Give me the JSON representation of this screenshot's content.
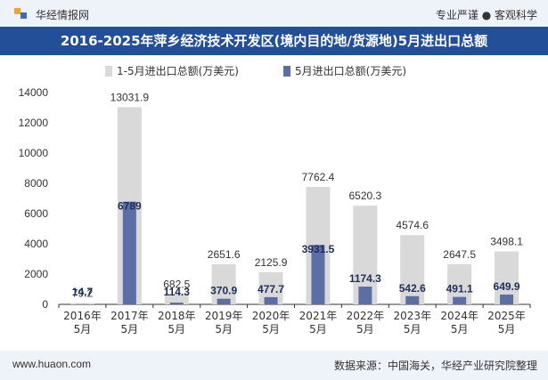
{
  "header": {
    "brand": "华经情报网",
    "tagline": "专业严谨 ● 客观科学"
  },
  "title": "2016-2025年萍乡经济技术开发区(境内目的地/货源地)5月进出口总额",
  "footer": {
    "website": "www.huaon.com",
    "source": "数据来源：中国海关，华经产业研究院整理"
  },
  "colors": {
    "accent": "#234f98",
    "series_cumulative": "#d9d9d9",
    "series_may": "#5b6ea5"
  },
  "chart_data": {
    "type": "bar",
    "categories": [
      "2016年\n5月",
      "2017年\n5月",
      "2018年\n5月",
      "2019年\n5月",
      "2020年\n5月",
      "2021年\n5月",
      "2022年\n5月",
      "2023年\n5月",
      "2024年\n5月",
      "2025年\n5月"
    ],
    "series": [
      {
        "name": "1-5月进出口总额(万美元)",
        "values": [
          79.2,
          13031.9,
          682.5,
          2651.6,
          2125.9,
          7762.4,
          6520.3,
          4574.6,
          2647.5,
          3498.1
        ]
      },
      {
        "name": "5月进出口总额(万美元)",
        "values": [
          14.7,
          6789,
          114.3,
          370.9,
          477.7,
          3931.5,
          1174.3,
          542.6,
          491.1,
          649.9
        ]
      }
    ],
    "value_labels": [
      [
        "79.2",
        "13031.9",
        "682.5",
        "2651.6",
        "2125.9",
        "7762.4",
        "6520.3",
        "4574.6",
        "2647.5",
        "3498.1"
      ],
      [
        "14.7",
        "6789",
        "114.3",
        "370.9",
        "477.7",
        "3931.5",
        "1174.3",
        "542.6",
        "491.1",
        "649.9"
      ]
    ],
    "yticks": [
      0,
      2000,
      4000,
      6000,
      8000,
      10000,
      12000,
      14000
    ],
    "ylim": [
      0,
      14000
    ],
    "legend_position": "top-center",
    "grid": false
  }
}
